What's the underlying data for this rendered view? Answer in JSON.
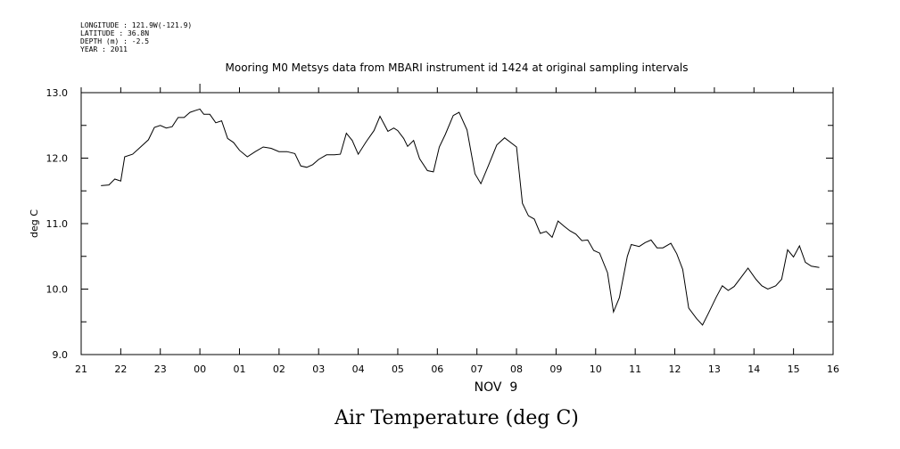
{
  "header": {
    "meta_lines": [
      "LONGITUDE : 121.9W(-121.9)",
      "LATITUDE : 36.8N",
      "DEPTH (m) : -2.5",
      "YEAR : 2011"
    ]
  },
  "chart_data": {
    "type": "line",
    "title": "Mooring M0 Metsys data from MBARI instrument id 1424 at original sampling intervals",
    "ylabel": "deg C",
    "xlabel": "NOV  9",
    "caption": "Air Temperature (deg C)",
    "ylim": [
      9.0,
      13.0
    ],
    "yticks": [
      "9.0",
      "10.0",
      "11.0",
      "12.0",
      "13.0"
    ],
    "xticks": [
      "21",
      "22",
      "23",
      "00",
      "01",
      "02",
      "03",
      "04",
      "05",
      "06",
      "07",
      "08",
      "09",
      "10",
      "11",
      "12",
      "13",
      "14",
      "15",
      "16"
    ],
    "series": [
      {
        "values": [
          [
            21.5,
            11.58
          ],
          [
            21.7,
            11.59
          ],
          [
            21.85,
            11.68
          ],
          [
            22.0,
            11.65
          ],
          [
            22.1,
            12.02
          ],
          [
            22.3,
            12.06
          ],
          [
            22.5,
            12.17
          ],
          [
            22.7,
            12.28
          ],
          [
            22.85,
            12.47
          ],
          [
            23.0,
            12.5
          ],
          [
            23.15,
            12.46
          ],
          [
            23.3,
            12.48
          ],
          [
            23.45,
            12.62
          ],
          [
            23.6,
            12.62
          ],
          [
            23.75,
            12.7
          ],
          [
            23.9,
            12.73
          ],
          [
            24.0,
            12.75
          ],
          [
            24.1,
            12.67
          ],
          [
            24.25,
            12.67
          ],
          [
            24.4,
            12.54
          ],
          [
            24.55,
            12.57
          ],
          [
            24.7,
            12.3
          ],
          [
            24.85,
            12.24
          ],
          [
            25.0,
            12.12
          ],
          [
            25.2,
            12.02
          ],
          [
            25.4,
            12.1
          ],
          [
            25.6,
            12.17
          ],
          [
            25.8,
            12.15
          ],
          [
            26.0,
            12.1
          ],
          [
            26.2,
            12.1
          ],
          [
            26.4,
            12.07
          ],
          [
            26.55,
            11.88
          ],
          [
            26.7,
            11.86
          ],
          [
            26.85,
            11.9
          ],
          [
            27.0,
            11.98
          ],
          [
            27.2,
            12.05
          ],
          [
            27.4,
            12.05
          ],
          [
            27.55,
            12.06
          ],
          [
            27.7,
            12.38
          ],
          [
            27.85,
            12.27
          ],
          [
            28.0,
            12.06
          ],
          [
            28.2,
            12.25
          ],
          [
            28.4,
            12.42
          ],
          [
            28.55,
            12.64
          ],
          [
            28.75,
            12.41
          ],
          [
            28.9,
            12.46
          ],
          [
            29.0,
            12.42
          ],
          [
            29.15,
            12.3
          ],
          [
            29.25,
            12.18
          ],
          [
            29.4,
            12.27
          ],
          [
            29.55,
            11.99
          ],
          [
            29.75,
            11.81
          ],
          [
            29.9,
            11.79
          ],
          [
            30.05,
            12.17
          ],
          [
            30.2,
            12.36
          ],
          [
            30.4,
            12.65
          ],
          [
            30.55,
            12.7
          ],
          [
            30.75,
            12.43
          ],
          [
            30.95,
            11.76
          ],
          [
            31.1,
            11.61
          ],
          [
            31.3,
            11.9
          ],
          [
            31.5,
            12.2
          ],
          [
            31.7,
            12.31
          ],
          [
            32.0,
            12.17
          ],
          [
            32.15,
            11.31
          ],
          [
            32.3,
            11.12
          ],
          [
            32.45,
            11.07
          ],
          [
            32.6,
            10.85
          ],
          [
            32.75,
            10.88
          ],
          [
            32.9,
            10.79
          ],
          [
            33.05,
            11.04
          ],
          [
            33.2,
            10.96
          ],
          [
            33.35,
            10.89
          ],
          [
            33.5,
            10.84
          ],
          [
            33.65,
            10.74
          ],
          [
            33.8,
            10.75
          ],
          [
            33.95,
            10.59
          ],
          [
            34.1,
            10.55
          ],
          [
            34.3,
            10.25
          ],
          [
            34.45,
            9.65
          ],
          [
            34.6,
            9.87
          ],
          [
            34.8,
            10.5
          ],
          [
            34.9,
            10.68
          ],
          [
            35.1,
            10.65
          ],
          [
            35.25,
            10.71
          ],
          [
            35.4,
            10.75
          ],
          [
            35.55,
            10.63
          ],
          [
            35.7,
            10.63
          ],
          [
            35.9,
            10.7
          ],
          [
            36.05,
            10.54
          ],
          [
            36.2,
            10.3
          ],
          [
            36.35,
            9.71
          ],
          [
            36.55,
            9.55
          ],
          [
            36.7,
            9.45
          ],
          [
            36.85,
            9.63
          ],
          [
            37.05,
            9.88
          ],
          [
            37.2,
            10.05
          ],
          [
            37.35,
            9.98
          ],
          [
            37.5,
            10.04
          ],
          [
            37.7,
            10.2
          ],
          [
            37.85,
            10.32
          ],
          [
            38.05,
            10.15
          ],
          [
            38.2,
            10.05
          ],
          [
            38.35,
            10.0
          ],
          [
            38.55,
            10.05
          ],
          [
            38.7,
            10.15
          ],
          [
            38.85,
            10.6
          ],
          [
            39.0,
            10.49
          ],
          [
            39.15,
            10.66
          ],
          [
            39.3,
            10.41
          ],
          [
            39.45,
            10.35
          ],
          [
            39.65,
            10.33
          ]
        ]
      }
    ]
  }
}
